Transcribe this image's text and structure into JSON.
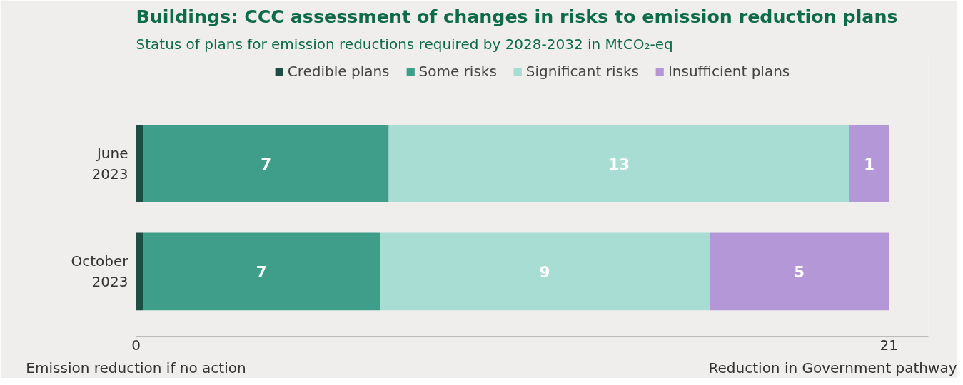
{
  "chart_data": {
    "type": "bar",
    "orientation": "horizontal",
    "stacked": true,
    "title": "Buildings: CCC assessment of changes in risks to emission reduction plans",
    "subtitle": "Status of plans for emission reductions required by 2028-2032 in MtCO₂-eq",
    "categories": [
      "June 2023",
      "October 2023"
    ],
    "series": [
      {
        "name": "Credible plans",
        "color": "#1e4d44",
        "values": [
          0.2,
          0.2
        ],
        "value_labels": [
          null,
          null
        ]
      },
      {
        "name": "Some risks",
        "color": "#3f9e8a",
        "values": [
          6.85,
          6.6
        ],
        "value_labels": [
          "7",
          "7"
        ]
      },
      {
        "name": "Significant risks",
        "color": "#a8ddd3",
        "values": [
          12.85,
          9.2
        ],
        "value_labels": [
          "13",
          "9"
        ]
      },
      {
        "name": "Insufficient plans",
        "color": "#b497d6",
        "values": [
          1.1,
          5.0
        ],
        "value_labels": [
          "1",
          "5"
        ]
      }
    ],
    "xlim": [
      0,
      22.1
    ],
    "xticks": [
      0,
      21
    ],
    "grid": false,
    "legend": "top",
    "annotations": [
      "Emission reduction if no action",
      "Reduction in Government pathway"
    ]
  }
}
